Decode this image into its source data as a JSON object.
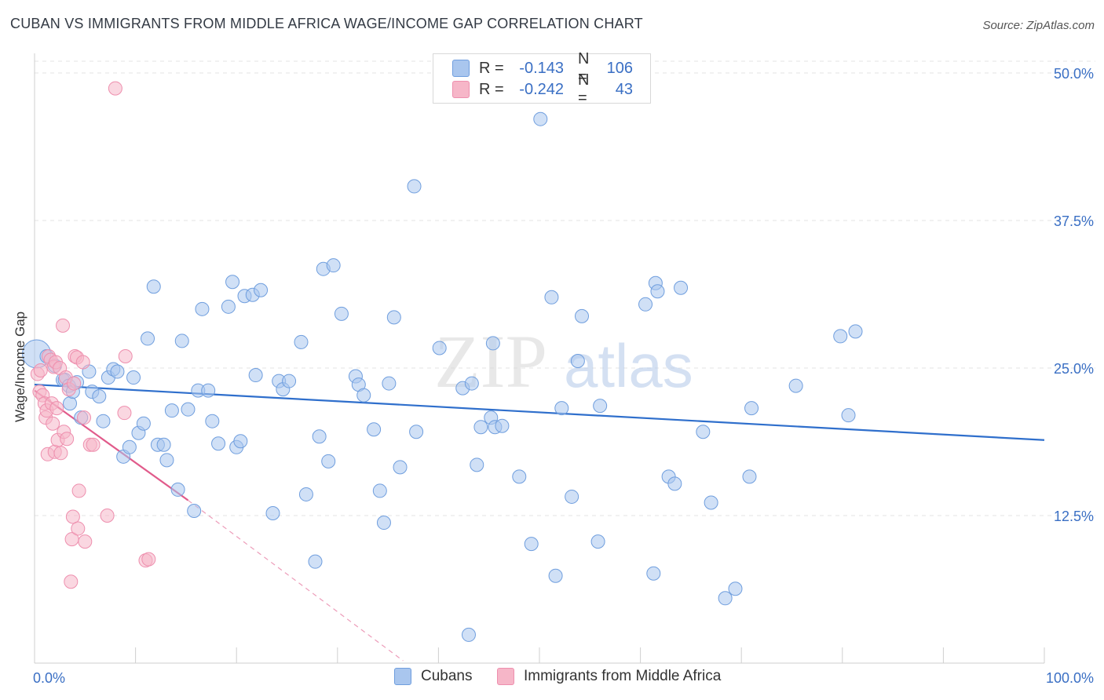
{
  "title": "CUBAN VS IMMIGRANTS FROM MIDDLE AFRICA WAGE/INCOME GAP CORRELATION CHART",
  "source": "Source: ZipAtlas.com",
  "watermark": {
    "zip": "ZIP",
    "atlas": "atlas"
  },
  "legend": {
    "rows": [
      {
        "r_label": "R =",
        "r_value": "-0.143",
        "n_label": "N =",
        "n_value": "106",
        "color": "#a9c6ee"
      },
      {
        "r_label": "R =",
        "r_value": "-0.242",
        "n_label": "N =",
        "n_value": "43",
        "color": "#f6b6c8"
      }
    ]
  },
  "bottom_legend": [
    {
      "label": "Cubans",
      "color": "#a9c6ee"
    },
    {
      "label": "Immigrants from Middle Africa",
      "color": "#f6b6c8"
    }
  ],
  "chart_data": {
    "type": "scatter",
    "title": "CUBAN VS IMMIGRANTS FROM MIDDLE AFRICA WAGE/INCOME GAP CORRELATION CHART",
    "xlabel": "",
    "ylabel": "Wage/Income Gap",
    "xlim": [
      0,
      100
    ],
    "ylim": [
      0,
      51
    ],
    "x_tick_labels": [
      "0.0%",
      "100.0%"
    ],
    "y_ticks": [
      12.5,
      25.0,
      37.5,
      50.0
    ],
    "y_tick_labels": [
      "12.5%",
      "25.0%",
      "37.5%",
      "50.0%"
    ],
    "series": [
      {
        "name": "Cubans",
        "color": "#6f9ede",
        "fill": "#a9c6ee",
        "line_color": "#2f6fcc",
        "trend": {
          "x": [
            0,
            100
          ],
          "y": [
            23.6,
            18.9
          ]
        },
        "points": [
          [
            0.2,
            26.2
          ],
          [
            1.2,
            26.0
          ],
          [
            2.0,
            25.2
          ],
          [
            2.8,
            24.0
          ],
          [
            3.0,
            24.0
          ],
          [
            3.4,
            23.5
          ],
          [
            3.5,
            22.0
          ],
          [
            3.8,
            23.0
          ],
          [
            4.2,
            23.8
          ],
          [
            4.6,
            20.8
          ],
          [
            5.4,
            24.7
          ],
          [
            5.7,
            23.0
          ],
          [
            6.4,
            22.6
          ],
          [
            6.8,
            20.5
          ],
          [
            7.3,
            24.2
          ],
          [
            7.8,
            24.9
          ],
          [
            8.2,
            24.7
          ],
          [
            8.8,
            17.5
          ],
          [
            9.4,
            18.3
          ],
          [
            9.8,
            24.2
          ],
          [
            10.3,
            19.5
          ],
          [
            10.8,
            20.3
          ],
          [
            11.2,
            27.5
          ],
          [
            11.8,
            31.9
          ],
          [
            12.2,
            18.5
          ],
          [
            12.8,
            18.5
          ],
          [
            13.1,
            17.2
          ],
          [
            13.6,
            21.4
          ],
          [
            14.2,
            14.7
          ],
          [
            14.6,
            27.3
          ],
          [
            15.2,
            21.5
          ],
          [
            15.8,
            12.9
          ],
          [
            16.2,
            23.1
          ],
          [
            16.6,
            30.0
          ],
          [
            17.2,
            23.1
          ],
          [
            17.6,
            20.5
          ],
          [
            18.2,
            18.6
          ],
          [
            19.2,
            30.2
          ],
          [
            19.6,
            32.3
          ],
          [
            20.0,
            18.3
          ],
          [
            20.4,
            18.8
          ],
          [
            20.8,
            31.1
          ],
          [
            21.6,
            31.2
          ],
          [
            21.9,
            24.4
          ],
          [
            22.4,
            31.6
          ],
          [
            23.6,
            12.7
          ],
          [
            24.2,
            23.9
          ],
          [
            24.6,
            23.2
          ],
          [
            25.2,
            23.9
          ],
          [
            26.4,
            27.2
          ],
          [
            26.9,
            14.3
          ],
          [
            27.8,
            8.6
          ],
          [
            28.2,
            19.2
          ],
          [
            28.6,
            33.4
          ],
          [
            29.1,
            17.1
          ],
          [
            29.6,
            33.7
          ],
          [
            30.4,
            29.6
          ],
          [
            31.8,
            24.3
          ],
          [
            32.1,
            23.6
          ],
          [
            32.6,
            22.7
          ],
          [
            33.6,
            19.8
          ],
          [
            34.2,
            14.6
          ],
          [
            34.6,
            11.9
          ],
          [
            35.1,
            23.7
          ],
          [
            35.6,
            29.3
          ],
          [
            36.2,
            16.6
          ],
          [
            37.6,
            40.4
          ],
          [
            37.8,
            19.6
          ],
          [
            40.1,
            26.7
          ],
          [
            42.4,
            23.3
          ],
          [
            43.0,
            2.4
          ],
          [
            43.3,
            23.7
          ],
          [
            43.8,
            16.8
          ],
          [
            44.2,
            20.0
          ],
          [
            45.2,
            20.8
          ],
          [
            45.4,
            27.1
          ],
          [
            45.6,
            20.0
          ],
          [
            46.3,
            20.1
          ],
          [
            48.0,
            15.8
          ],
          [
            49.2,
            10.1
          ],
          [
            50.1,
            46.1
          ],
          [
            51.2,
            31.0
          ],
          [
            51.6,
            7.4
          ],
          [
            52.2,
            21.6
          ],
          [
            53.2,
            14.1
          ],
          [
            53.8,
            25.6
          ],
          [
            54.2,
            29.4
          ],
          [
            55.8,
            10.3
          ],
          [
            56.0,
            21.8
          ],
          [
            60.5,
            30.4
          ],
          [
            61.3,
            7.6
          ],
          [
            61.5,
            32.2
          ],
          [
            61.7,
            31.5
          ],
          [
            62.8,
            15.8
          ],
          [
            63.4,
            15.2
          ],
          [
            64.0,
            31.8
          ],
          [
            66.2,
            19.6
          ],
          [
            67.0,
            13.6
          ],
          [
            68.4,
            5.5
          ],
          [
            69.4,
            6.3
          ],
          [
            70.8,
            15.8
          ],
          [
            71.0,
            21.6
          ],
          [
            75.4,
            23.5
          ],
          [
            79.8,
            27.7
          ],
          [
            80.6,
            21.0
          ],
          [
            81.3,
            28.1
          ]
        ]
      },
      {
        "name": "Immigrants from Middle Africa",
        "color": "#ee8fae",
        "fill": "#f6b6c8",
        "line_color": "#e15b8b",
        "trend": {
          "x": [
            0,
            15.2
          ],
          "y": [
            23.1,
            13.8
          ]
        },
        "trend_dashed": {
          "x": [
            15.2,
            36.5
          ],
          "y": [
            13.8,
            0.2
          ]
        },
        "points": [
          [
            0.3,
            24.5
          ],
          [
            0.5,
            23.0
          ],
          [
            0.6,
            24.8
          ],
          [
            0.8,
            22.7
          ],
          [
            1.0,
            22.0
          ],
          [
            1.1,
            20.8
          ],
          [
            1.2,
            21.4
          ],
          [
            1.3,
            17.7
          ],
          [
            1.4,
            26.0
          ],
          [
            1.6,
            25.7
          ],
          [
            1.7,
            22.0
          ],
          [
            1.8,
            20.3
          ],
          [
            1.9,
            25.1
          ],
          [
            2.0,
            17.9
          ],
          [
            2.1,
            25.5
          ],
          [
            2.2,
            21.6
          ],
          [
            2.3,
            18.9
          ],
          [
            2.5,
            25.0
          ],
          [
            2.6,
            17.8
          ],
          [
            2.8,
            28.6
          ],
          [
            2.9,
            19.6
          ],
          [
            3.1,
            24.2
          ],
          [
            3.2,
            19.0
          ],
          [
            3.4,
            23.2
          ],
          [
            3.6,
            6.9
          ],
          [
            3.7,
            10.5
          ],
          [
            3.8,
            12.4
          ],
          [
            3.9,
            23.7
          ],
          [
            4.0,
            26.0
          ],
          [
            4.2,
            25.9
          ],
          [
            4.3,
            11.4
          ],
          [
            4.4,
            14.6
          ],
          [
            4.8,
            25.5
          ],
          [
            4.9,
            20.8
          ],
          [
            5.0,
            10.3
          ],
          [
            5.5,
            18.5
          ],
          [
            5.8,
            18.5
          ],
          [
            7.2,
            12.5
          ],
          [
            8.0,
            48.7
          ],
          [
            8.9,
            21.2
          ],
          [
            9.0,
            26.0
          ],
          [
            11.0,
            8.7
          ],
          [
            11.3,
            8.8
          ]
        ]
      }
    ]
  }
}
